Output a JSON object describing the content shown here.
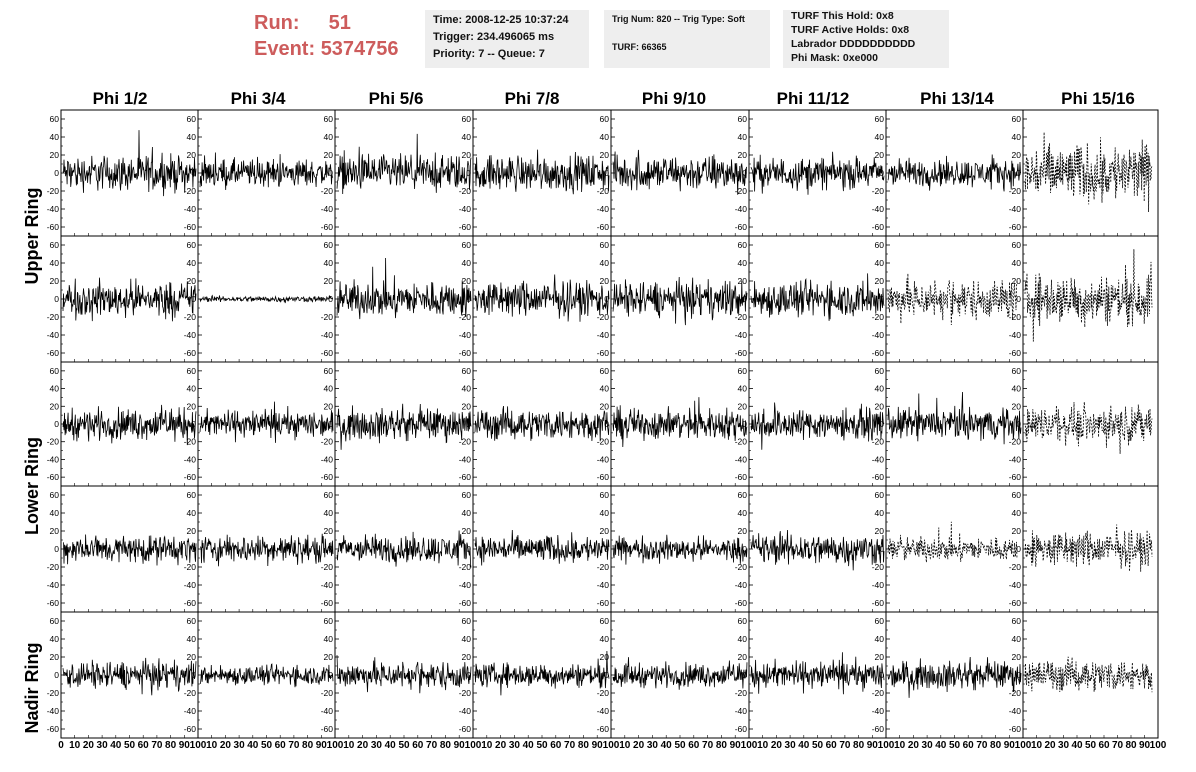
{
  "run_header": {
    "run_label": "Run:",
    "run_value": "51",
    "event_label": "Event:",
    "event_value": "5374756",
    "accent_color": "#cd5c5c"
  },
  "info_boxes": {
    "time_box": [
      "Time: 2008-12-25 10:37:24",
      "Trigger: 234.496065 ms",
      "Priority: 7 -- Queue: 7"
    ],
    "trig_box": [
      "Trig Num: 820 -- Trig Type: Soft",
      "",
      "TURF: 66365"
    ],
    "turf_box": [
      "TURF This Hold: 0x8",
      "TURF Active Holds: 0x8",
      "Labrador DDDDDDDDDD",
      "Phi Mask: 0xe000"
    ]
  },
  "chart_data": {
    "type": "line",
    "description_free": true,
    "col_titles": [
      "Phi 1/2",
      "Phi 3/4",
      "Phi 5/6",
      "Phi 7/8",
      "Phi 9/10",
      "Phi 11/12",
      "Phi 13/14",
      "Phi 15/16"
    ],
    "row_titles": [
      "Upper Ring",
      "Lower Ring",
      "Nadir Ring"
    ],
    "ylim": [
      -70,
      70
    ],
    "yticks": [
      -60,
      -40,
      -20,
      0,
      20,
      40,
      60
    ],
    "xlim": [
      0,
      100
    ],
    "xtick_labels": [
      [
        "0",
        "10",
        "20",
        "30",
        "40",
        "50",
        "60",
        "70",
        "80",
        "90",
        "100"
      ],
      [
        "10",
        "20",
        "30",
        "40",
        "50",
        "60",
        "70",
        "80",
        "90",
        "100"
      ],
      [
        "10",
        "20",
        "30",
        "40",
        "50",
        "60",
        "70",
        "80",
        "90",
        "100"
      ],
      [
        "10",
        "20",
        "30",
        "40",
        "50",
        "60",
        "70",
        "80",
        "90",
        "100"
      ],
      [
        "10",
        "20",
        "30",
        "40",
        "50",
        "60",
        "70",
        "80",
        "90",
        "100"
      ],
      [
        "10",
        "20",
        "30",
        "40",
        "50",
        "60",
        "70",
        "80",
        "90",
        "100"
      ],
      [
        "10",
        "20",
        "30",
        "40",
        "50",
        "60",
        "70",
        "80",
        "90",
        "100"
      ],
      [
        "10",
        "20",
        "30",
        "40",
        "50",
        "60",
        "70",
        "80",
        "90",
        "100"
      ]
    ],
    "grid": false,
    "sample_count": 260,
    "panels_amplitude": [
      [
        18,
        14,
        18,
        18,
        18,
        16,
        14,
        30
      ],
      [
        18,
        3,
        18,
        18,
        18,
        18,
        20,
        25
      ],
      [
        16,
        14,
        16,
        16,
        16,
        16,
        16,
        18
      ],
      [
        14,
        14,
        14,
        14,
        12,
        16,
        12,
        18
      ],
      [
        14,
        10,
        14,
        12,
        12,
        14,
        14,
        16
      ]
    ],
    "panels_style": [
      [
        "solid",
        "solid",
        "solid",
        "solid",
        "solid",
        "solid",
        "solid",
        "dashed"
      ],
      [
        "solid",
        "solid",
        "solid",
        "solid",
        "solid",
        "solid",
        "dashed",
        "dashed"
      ],
      [
        "solid",
        "solid",
        "solid",
        "solid",
        "solid",
        "solid",
        "solid",
        "dashed"
      ],
      [
        "solid",
        "solid",
        "solid",
        "solid",
        "solid",
        "solid",
        "dashed",
        "dashed"
      ],
      [
        "solid",
        "solid",
        "solid",
        "solid",
        "solid",
        "solid",
        "solid",
        "dashed"
      ]
    ]
  }
}
